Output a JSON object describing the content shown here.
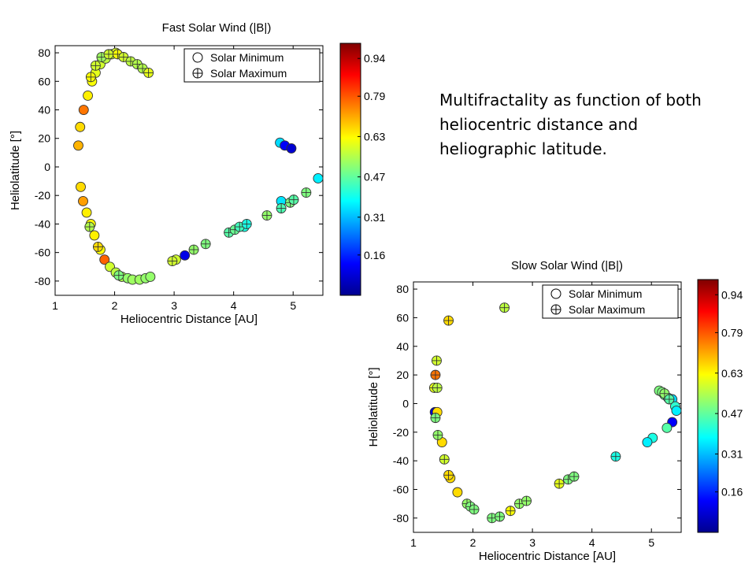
{
  "caption": {
    "text": "Multifractality  as function of both heliocentric distance and heliographic latitude."
  },
  "chart_data": [
    {
      "type": "scatter",
      "title": "Fast Solar Wind (|B|)",
      "xlabel": "Heliocentric Distance [AU]",
      "ylabel": "Heliolatitude [°]",
      "xlim": [
        1,
        5.5
      ],
      "ylim": [
        -90,
        85
      ],
      "xticks": [
        1,
        2,
        3,
        4,
        5
      ],
      "yticks": [
        -80,
        -60,
        -40,
        -20,
        0,
        20,
        40,
        60,
        80
      ],
      "legend": {
        "position": "top-right",
        "entries": [
          "Solar Minimum",
          "Solar Maximum"
        ]
      },
      "colorbar": {
        "range": [
          0,
          1.0
        ],
        "ticks": [
          "0.16",
          "0.31",
          "0.47",
          "0.63",
          "0.79",
          "0.94"
        ],
        "tick_values": [
          0.16,
          0.31,
          0.47,
          0.63,
          0.79,
          0.94
        ]
      },
      "series": [
        {
          "name": "Solar Minimum",
          "points": [
            [
              1.39,
              15,
              0.7
            ],
            [
              1.42,
              28,
              0.66
            ],
            [
              1.48,
              40,
              0.76
            ],
            [
              1.55,
              50,
              0.64
            ],
            [
              1.62,
              60,
              0.62
            ],
            [
              1.68,
              66,
              0.6
            ],
            [
              1.76,
              72,
              0.58
            ],
            [
              1.85,
              76,
              0.56
            ],
            [
              1.95,
              79,
              0.57
            ],
            [
              2.02,
              80,
              0.59
            ],
            [
              1.43,
              -14,
              0.66
            ],
            [
              1.47,
              -24,
              0.72
            ],
            [
              1.53,
              -32,
              0.64
            ],
            [
              1.6,
              -40,
              0.63
            ],
            [
              1.66,
              -48,
              0.64
            ],
            [
              1.76,
              -58,
              0.62
            ],
            [
              1.83,
              -65,
              0.78
            ],
            [
              1.92,
              -70,
              0.58
            ],
            [
              2.02,
              -74,
              0.56
            ],
            [
              2.12,
              -77,
              0.55
            ],
            [
              2.22,
              -78,
              0.52
            ],
            [
              2.3,
              -79,
              0.53
            ],
            [
              2.42,
              -79,
              0.53
            ],
            [
              2.52,
              -78,
              0.52
            ],
            [
              2.6,
              -77,
              0.52
            ],
            [
              3.03,
              -65,
              0.58
            ],
            [
              3.18,
              -62,
              0.1
            ],
            [
              4.18,
              -42,
              0.4
            ],
            [
              4.8,
              -24,
              0.35
            ],
            [
              4.78,
              17,
              0.34
            ],
            [
              4.86,
              15,
              0.12
            ],
            [
              4.97,
              13,
              0.08
            ],
            [
              5.42,
              -8,
              0.36
            ]
          ]
        },
        {
          "name": "Solar Maximum",
          "points": [
            [
              1.6,
              63,
              0.62
            ],
            [
              1.68,
              71,
              0.58
            ],
            [
              1.78,
              77,
              0.53
            ],
            [
              1.9,
              79,
              0.58
            ],
            [
              2.05,
              79,
              0.62
            ],
            [
              2.15,
              77,
              0.58
            ],
            [
              2.27,
              74,
              0.56
            ],
            [
              2.38,
              72,
              0.55
            ],
            [
              2.47,
              69,
              0.55
            ],
            [
              2.57,
              66,
              0.6
            ],
            [
              1.58,
              -42,
              0.55
            ],
            [
              1.72,
              -56,
              0.66
            ],
            [
              2.07,
              -76,
              0.5
            ],
            [
              2.97,
              -66,
              0.58
            ],
            [
              3.33,
              -58,
              0.52
            ],
            [
              3.53,
              -54,
              0.5
            ],
            [
              3.92,
              -46,
              0.46
            ],
            [
              4.02,
              -44,
              0.48
            ],
            [
              4.1,
              -42,
              0.44
            ],
            [
              4.22,
              -40,
              0.4
            ],
            [
              4.56,
              -34,
              0.52
            ],
            [
              4.8,
              -29,
              0.45
            ],
            [
              4.95,
              -25,
              0.5
            ],
            [
              5.01,
              -23,
              0.46
            ],
            [
              5.22,
              -18,
              0.5
            ]
          ]
        }
      ]
    },
    {
      "type": "scatter",
      "title": "Slow Solar Wind (|B|)",
      "xlabel": "Heliocentric Distance [AU]",
      "ylabel": "Heliolatitude [°]",
      "xlim": [
        1,
        5.5
      ],
      "ylim": [
        -90,
        85
      ],
      "xticks": [
        1,
        2,
        3,
        4,
        5
      ],
      "yticks": [
        -80,
        -60,
        -40,
        -20,
        0,
        20,
        40,
        60,
        80
      ],
      "legend": {
        "position": "top-right",
        "entries": [
          "Solar Minimum",
          "Solar Maximum"
        ]
      },
      "colorbar": {
        "range": [
          0,
          1.0
        ],
        "ticks": [
          "0.16",
          "0.31",
          "0.47",
          "0.63",
          "0.79",
          "0.94"
        ],
        "tick_values": [
          0.16,
          0.31,
          0.47,
          0.63,
          0.79,
          0.94
        ]
      },
      "series": [
        {
          "name": "Solar Minimum",
          "points": [
            [
              1.36,
              -6,
              0.08
            ],
            [
              1.4,
              -6,
              0.66
            ],
            [
              1.48,
              -27,
              0.66
            ],
            [
              1.62,
              -52,
              0.66
            ],
            [
              1.74,
              -62,
              0.66
            ],
            [
              5.13,
              9,
              0.5
            ],
            [
              5.18,
              8,
              0.5
            ],
            [
              5.22,
              6,
              0.48
            ],
            [
              5.28,
              4,
              0.4
            ],
            [
              5.35,
              3,
              0.34
            ],
            [
              5.4,
              -2,
              0.42
            ],
            [
              5.42,
              -5,
              0.36
            ],
            [
              5.35,
              -13,
              0.12
            ],
            [
              5.26,
              -17,
              0.46
            ],
            [
              5.02,
              -24,
              0.4
            ],
            [
              4.93,
              -27,
              0.36
            ]
          ]
        },
        {
          "name": "Solar Maximum",
          "points": [
            [
              1.59,
              58,
              0.66
            ],
            [
              2.53,
              67,
              0.56
            ],
            [
              1.39,
              30,
              0.58
            ],
            [
              1.37,
              20,
              0.76
            ],
            [
              1.35,
              11,
              0.6
            ],
            [
              1.4,
              11,
              0.56
            ],
            [
              1.37,
              -10,
              0.5
            ],
            [
              1.41,
              -22,
              0.52
            ],
            [
              1.52,
              -39,
              0.58
            ],
            [
              1.59,
              -50,
              0.66
            ],
            [
              1.9,
              -70,
              0.52
            ],
            [
              1.96,
              -72,
              0.5
            ],
            [
              2.02,
              -74,
              0.5
            ],
            [
              2.32,
              -80,
              0.5
            ],
            [
              2.45,
              -79,
              0.5
            ],
            [
              2.63,
              -75,
              0.62
            ],
            [
              2.78,
              -70,
              0.52
            ],
            [
              2.9,
              -68,
              0.52
            ],
            [
              3.45,
              -56,
              0.6
            ],
            [
              3.6,
              -53,
              0.5
            ],
            [
              3.7,
              -51,
              0.5
            ],
            [
              4.4,
              -37,
              0.4
            ],
            [
              5.22,
              7,
              0.52
            ],
            [
              5.3,
              3,
              0.46
            ]
          ]
        }
      ]
    }
  ]
}
